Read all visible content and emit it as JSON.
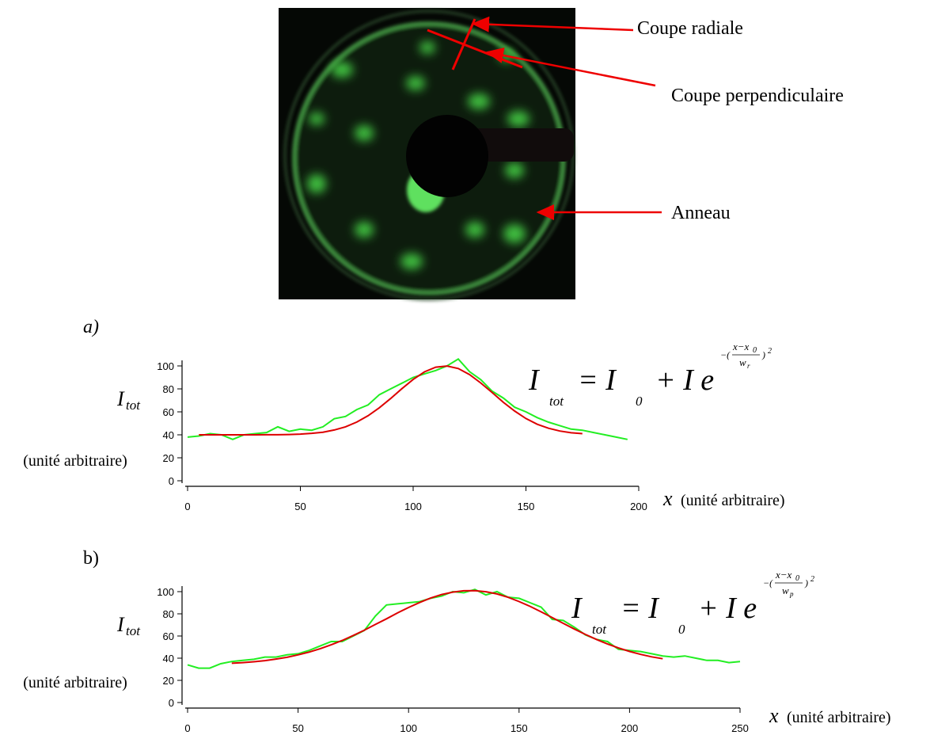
{
  "figure": {
    "annotations": [
      "Coupe radiale",
      "Coupe perpendiculaire",
      "Anneau"
    ]
  },
  "chart_data": [
    {
      "type": "line",
      "title": "a)",
      "ylabel": "I",
      "ylabel_sub": "tot",
      "ylabel_unit": "(unité arbitraire)",
      "xlabel": "x",
      "xlabel_unit": "(unité arbitraire)",
      "formula": {
        "lhs": "I",
        "lhs_sub": "tot",
        "rhs": "= I",
        "rhs_sub": "0",
        "rest": "+ I e",
        "exp_open": "−(",
        "num": "x−x",
        "num_sub": "0",
        "den": "w",
        "den_sub": "r",
        "exp_close": ")",
        "exp_pow": "2"
      },
      "xlim": [
        0,
        200
      ],
      "xticks": [
        0,
        50,
        100,
        150,
        200
      ],
      "ylim": [
        0,
        100
      ],
      "yticks": [
        0,
        20,
        40,
        60,
        80,
        100
      ],
      "x": [
        0,
        5,
        10,
        15,
        20,
        25,
        30,
        35,
        40,
        45,
        50,
        55,
        60,
        65,
        70,
        75,
        80,
        85,
        90,
        95,
        100,
        105,
        110,
        115,
        120,
        125,
        130,
        135,
        140,
        145,
        150,
        155,
        160,
        165,
        170,
        175,
        180,
        185,
        190,
        195
      ],
      "series": [
        {
          "color": "#22ee22",
          "values": [
            38,
            39,
            41,
            40,
            36,
            40,
            41,
            42,
            47,
            43,
            45,
            44,
            47,
            54,
            56,
            62,
            66,
            75,
            80,
            85,
            90,
            93,
            96,
            100,
            106,
            95,
            88,
            78,
            72,
            64,
            60,
            55,
            51,
            48,
            45,
            44,
            42,
            40,
            38,
            36
          ]
        },
        {
          "color": "#dd0000",
          "values": [
            null,
            40,
            40,
            40,
            40,
            40,
            40,
            40.1,
            40.1,
            40.3,
            40.6,
            41.3,
            42.3,
            44.2,
            47,
            51.1,
            56.6,
            63.6,
            71.6,
            80.2,
            88.2,
            94.8,
            98.9,
            99.9,
            97.7,
            92.4,
            85.1,
            76.8,
            68.3,
            60.7,
            54.2,
            49.2,
            45.7,
            43.3,
            41.8,
            41,
            null,
            null,
            null,
            null
          ]
        }
      ]
    },
    {
      "type": "line",
      "title": "b)",
      "ylabel": "I",
      "ylabel_sub": "tot",
      "ylabel_unit": "(unité arbitraire)",
      "xlabel": "x",
      "xlabel_unit": "(unité arbitraire)",
      "formula": {
        "lhs": "I",
        "lhs_sub": "tot",
        "rhs": "= I",
        "rhs_sub": "0",
        "rest": "+ I e",
        "exp_open": "−(",
        "num": "x−x",
        "num_sub": "0",
        "den": "w",
        "den_sub": "p",
        "exp_close": ")",
        "exp_pow": "2"
      },
      "xlim": [
        0,
        250
      ],
      "xticks": [
        0,
        50,
        100,
        150,
        200,
        250
      ],
      "ylim": [
        0,
        100
      ],
      "yticks": [
        0,
        20,
        40,
        60,
        80,
        100
      ],
      "x": [
        0,
        5,
        10,
        15,
        20,
        25,
        30,
        35,
        40,
        45,
        50,
        55,
        60,
        65,
        70,
        75,
        80,
        85,
        90,
        95,
        100,
        105,
        110,
        115,
        120,
        125,
        130,
        135,
        140,
        145,
        150,
        155,
        160,
        165,
        170,
        175,
        180,
        185,
        190,
        195,
        200,
        205,
        210,
        215,
        220,
        225,
        230,
        235,
        240,
        245,
        250
      ],
      "series": [
        {
          "color": "#22ee22",
          "values": [
            34,
            31,
            31,
            35,
            37,
            38,
            39,
            41,
            41,
            43,
            44,
            47,
            51,
            55,
            55,
            60,
            65,
            78,
            88,
            89,
            90,
            91,
            94,
            96,
            100,
            99,
            102,
            97,
            100,
            95,
            94,
            90,
            86,
            75,
            74,
            68,
            61,
            57,
            55,
            48,
            47,
            46,
            44,
            42,
            41,
            42,
            40,
            38,
            38,
            36,
            37
          ]
        },
        {
          "color": "#dd0000",
          "values": [
            null,
            null,
            null,
            null,
            35.4,
            36,
            36.8,
            37.8,
            39.2,
            40.8,
            43,
            45.5,
            48.5,
            52.1,
            56,
            60.5,
            65.3,
            70.4,
            75.5,
            80.8,
            85.7,
            90.2,
            94.2,
            97.4,
            99.6,
            100.8,
            100.9,
            99.9,
            97.9,
            94.9,
            91.1,
            86.7,
            81.8,
            76.6,
            71.4,
            66.3,
            61.4,
            56.9,
            52.8,
            49.2,
            46.1,
            43.4,
            41.2,
            39.5,
            null,
            null,
            null,
            null,
            null,
            null,
            null
          ]
        }
      ]
    }
  ]
}
